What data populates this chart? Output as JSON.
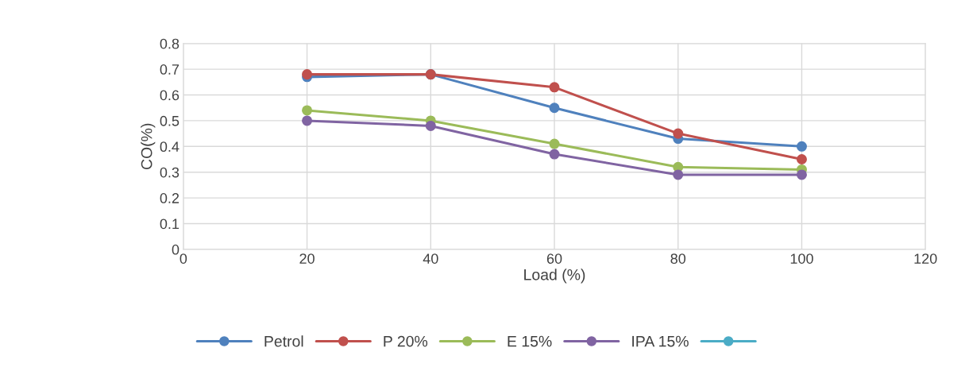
{
  "chart_data": {
    "type": "line",
    "xlabel": "Load (%)",
    "ylabel": "CO(%)",
    "x": [
      20,
      40,
      60,
      80,
      100
    ],
    "series": [
      {
        "name": "Petrol",
        "color": "#4f81bd",
        "values": [
          0.67,
          0.68,
          0.55,
          0.43,
          0.4
        ]
      },
      {
        "name": "P 20%",
        "color": "#c0504d",
        "values": [
          0.68,
          0.68,
          0.63,
          0.45,
          0.35
        ]
      },
      {
        "name": "E 15%",
        "color": "#9bbb59",
        "values": [
          0.54,
          0.5,
          0.41,
          0.32,
          0.31
        ]
      },
      {
        "name": "IPA 15%",
        "color": "#8064a2",
        "values": [
          0.5,
          0.48,
          0.37,
          0.29,
          0.29
        ]
      },
      {
        "color": "#4bacc6",
        "values": [
          null,
          null,
          null,
          null,
          null
        ]
      }
    ],
    "xlim": [
      0,
      120
    ],
    "xticks": [
      0,
      20,
      40,
      60,
      80,
      100,
      120
    ],
    "ylim": [
      0,
      0.8
    ],
    "yticks": [
      0,
      0.1,
      0.2,
      0.3,
      0.4,
      0.5,
      0.6,
      0.7,
      0.8
    ],
    "grid": true,
    "legend": "bottom",
    "marker": "circle",
    "line_style": "solid"
  }
}
